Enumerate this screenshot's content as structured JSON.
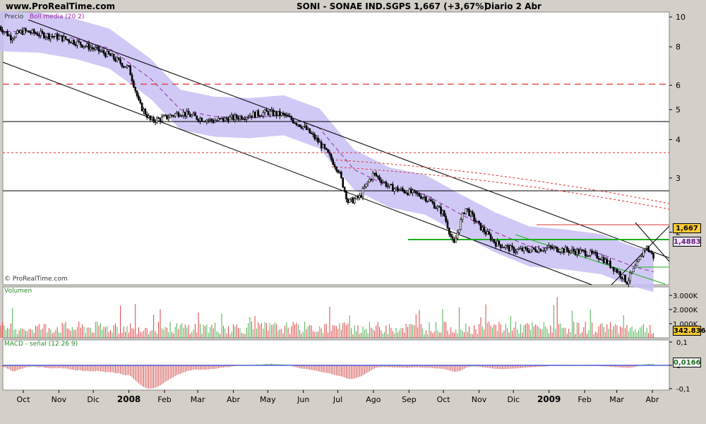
{
  "header": {
    "site": "www.ProRealTime.com",
    "instrument": "SONI - SONAE IND.SGPS",
    "quote": "1,667 (+3,67%)",
    "period": "Diario  2 Abr"
  },
  "colors": {
    "background": "#d4d0c8",
    "panel": "#ffffff",
    "bollinger_band": "#c8c0f4",
    "bollinger_mid": "#9a28a0",
    "volume_up": "#4caf50",
    "volume_down": "#e04040",
    "macd_pos": "#3aa83a",
    "macd_neg": "#d04848",
    "signal": "#2a3ed8",
    "price_tag": "#ffcc33",
    "boll_tag": "#ece8ff",
    "volume_tag": "#ffcc33"
  },
  "price_panel": {
    "legend_price": "Precio",
    "legend_boll": "Boll media (20 2)",
    "copyright": "© ProRealTime.com",
    "price_tag": "1,667",
    "boll_tag": "1,4883"
  },
  "volume_panel": {
    "title": "Volumen",
    "last_tag": "342.836"
  },
  "macd_panel": {
    "title": "MACD - señal (12 26 9)",
    "last_tag": "0,0166"
  },
  "chart_data": [
    {
      "type": "line",
      "title": "SONI - SONAE IND.SGPS",
      "scale": "log",
      "ylim": [
        1.35,
        10.3
      ],
      "y_ticks": [
        "10",
        "8",
        "6",
        "5",
        "4",
        "3",
        "2"
      ],
      "y_tick_values": [
        10,
        8,
        6,
        5,
        4,
        3,
        2
      ],
      "x_tick_labels": [
        "Oct",
        "Nov",
        "Dic",
        "2008",
        "Feb",
        "Mar",
        "Abr",
        "May",
        "Jun",
        "Jul",
        "Ago",
        "Sep",
        "Oct",
        "Nov",
        "Dic",
        "2009",
        "Feb",
        "Mar",
        "Abr"
      ],
      "x_tick_dates": [
        "2007-10-01",
        "2007-11-01",
        "2007-12-01",
        "2008-01-01",
        "2008-02-01",
        "2008-03-01",
        "2008-04-01",
        "2008-05-01",
        "2008-06-01",
        "2008-07-01",
        "2008-08-01",
        "2008-09-01",
        "2008-10-01",
        "2008-11-01",
        "2008-12-01",
        "2009-01-01",
        "2009-02-01",
        "2009-03-01",
        "2009-04-01"
      ],
      "series": [
        {
          "name": "Precio",
          "x": [
            "2007-09-10",
            "2007-09-20",
            "2007-10-01",
            "2007-10-15",
            "2007-11-01",
            "2007-11-15",
            "2007-12-01",
            "2007-12-15",
            "2008-01-01",
            "2008-01-10",
            "2008-01-20",
            "2008-02-01",
            "2008-02-15",
            "2008-03-01",
            "2008-03-15",
            "2008-04-01",
            "2008-04-15",
            "2008-05-01",
            "2008-05-15",
            "2008-06-01",
            "2008-06-15",
            "2008-07-01",
            "2008-07-10",
            "2008-07-20",
            "2008-08-01",
            "2008-08-15",
            "2008-09-01",
            "2008-09-15",
            "2008-10-01",
            "2008-10-10",
            "2008-10-20",
            "2008-11-01",
            "2008-11-15",
            "2008-12-01",
            "2008-12-15",
            "2009-01-01",
            "2009-01-15",
            "2009-02-01",
            "2009-02-15",
            "2009-03-01",
            "2009-03-10",
            "2009-03-20",
            "2009-03-26",
            "2009-04-02"
          ],
          "values": [
            9.3,
            8.6,
            9.0,
            8.8,
            8.6,
            8.3,
            7.9,
            7.5,
            6.8,
            5.2,
            4.6,
            4.7,
            4.9,
            4.7,
            4.6,
            4.7,
            4.8,
            4.9,
            4.8,
            4.4,
            3.9,
            3.2,
            2.5,
            2.6,
            3.1,
            2.8,
            2.7,
            2.6,
            2.3,
            1.8,
            2.4,
            2.1,
            1.85,
            1.75,
            1.75,
            1.78,
            1.75,
            1.72,
            1.66,
            1.5,
            1.38,
            1.6,
            1.8,
            1.667
          ]
        },
        {
          "name": "Boll media (20 2)",
          "x": [
            "2007-09-10",
            "2007-10-15",
            "2007-11-15",
            "2007-12-15",
            "2008-01-20",
            "2008-02-15",
            "2008-03-15",
            "2008-04-15",
            "2008-05-15",
            "2008-06-15",
            "2008-07-15",
            "2008-08-15",
            "2008-09-15",
            "2008-10-15",
            "2008-11-15",
            "2008-12-15",
            "2009-01-15",
            "2009-02-15",
            "2009-03-15",
            "2009-04-02"
          ],
          "values": [
            9.0,
            8.9,
            8.5,
            7.9,
            6.3,
            5.0,
            4.75,
            4.7,
            4.8,
            4.35,
            3.2,
            2.8,
            2.65,
            2.3,
            2.0,
            1.8,
            1.76,
            1.7,
            1.55,
            1.4883
          ]
        }
      ],
      "reference_levels": [
        6.05
      ]
    },
    {
      "type": "bar",
      "title": "Volumen",
      "y_ticks": [
        "3.000K",
        "2.000K",
        "1.000K"
      ],
      "y_tick_values": [
        3000000,
        2000000,
        1000000
      ],
      "last_value": 342836
    },
    {
      "type": "bar",
      "title": "MACD - señal (12 26 9)",
      "y_ticks": [
        "0,1",
        "0",
        "-0,1"
      ],
      "y_tick_values": [
        0.1,
        0,
        -0.1
      ],
      "last_value": 0.0166
    }
  ]
}
